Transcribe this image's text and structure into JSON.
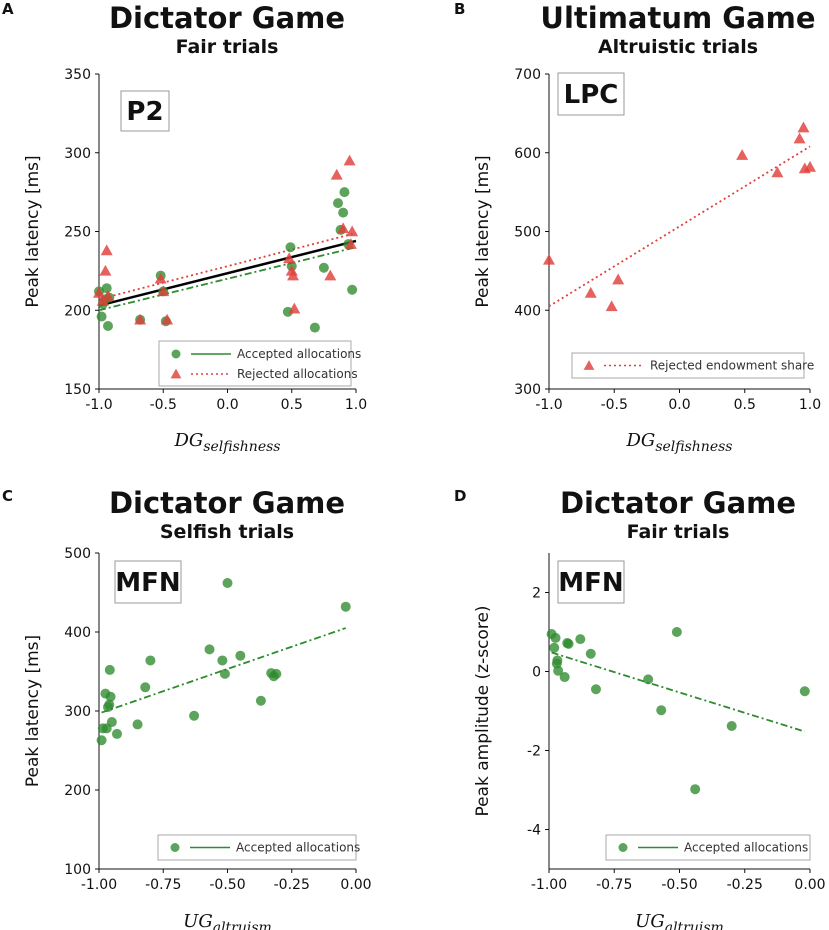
{
  "colors": {
    "accepted": "#2e8b2e",
    "rejected": "#e0403a",
    "regression": "#000000",
    "axis": "#111111"
  },
  "chart_data": [
    {
      "type": "scatter",
      "panel": "A",
      "title": "Dictator Game",
      "subtitle": "Fair trials",
      "tag": "P2",
      "ylabel": "Peak latency [ms]",
      "xlabel_main": "DG",
      "xlabel_sub": "selfishness",
      "xlim": [
        -1.0,
        1.0
      ],
      "ylim": [
        150,
        350
      ],
      "xticks": [
        -1.0,
        -0.5,
        0.0,
        0.5,
        1.0
      ],
      "xtick_labels": [
        "-1.0",
        "-0.5",
        "0.0",
        "0.5",
        "1.0"
      ],
      "yticks": [
        150,
        200,
        250,
        300,
        350
      ],
      "ytick_labels": [
        "150",
        "200",
        "250",
        "300",
        "350"
      ],
      "legend_position": "bottom-right",
      "series": [
        {
          "name": "Accepted allocations",
          "marker": "circle",
          "line": "dashdot",
          "color": "#2e8b2e",
          "points": [
            [
              -1.0,
              212
            ],
            [
              -0.98,
              196
            ],
            [
              -0.97,
              204
            ],
            [
              -0.95,
              207
            ],
            [
              -0.94,
              214
            ],
            [
              -0.93,
              190
            ],
            [
              -0.92,
              208
            ],
            [
              -0.68,
              194
            ],
            [
              -0.52,
              222
            ],
            [
              -0.5,
              212
            ],
            [
              -0.48,
              193
            ],
            [
              0.47,
              199
            ],
            [
              0.49,
              240
            ],
            [
              0.5,
              228
            ],
            [
              0.68,
              189
            ],
            [
              0.75,
              227
            ],
            [
              0.86,
              268
            ],
            [
              0.88,
              251
            ],
            [
              0.9,
              262
            ],
            [
              0.91,
              275
            ],
            [
              0.94,
              242
            ],
            [
              0.97,
              213
            ]
          ],
          "fit": [
            [
              -1.0,
              200
            ],
            [
              1.0,
              240
            ]
          ]
        },
        {
          "name": "Rejected allocations",
          "marker": "triangle",
          "line": "dotted",
          "color": "#e0403a",
          "points": [
            [
              -1.0,
              211
            ],
            [
              -0.97,
              206
            ],
            [
              -0.95,
              225
            ],
            [
              -0.94,
              238
            ],
            [
              -0.93,
              209
            ],
            [
              -0.68,
              194
            ],
            [
              -0.52,
              220
            ],
            [
              -0.5,
              212
            ],
            [
              -0.47,
              194
            ],
            [
              0.48,
              233
            ],
            [
              0.5,
              225
            ],
            [
              0.51,
              222
            ],
            [
              0.52,
              201
            ],
            [
              0.8,
              222
            ],
            [
              0.85,
              286
            ],
            [
              0.9,
              252
            ],
            [
              0.95,
              295
            ],
            [
              0.96,
              242
            ],
            [
              0.97,
              250
            ]
          ],
          "fit": [
            [
              -1.0,
              207
            ],
            [
              1.0,
              249
            ]
          ]
        },
        {
          "name": "",
          "marker": "none",
          "line": "solid",
          "color": "#000000",
          "points": [],
          "fit": [
            [
              -1.0,
              203
            ],
            [
              1.0,
              244
            ]
          ]
        }
      ],
      "legend": [
        {
          "marker": "circle",
          "line": "solid",
          "color": "#2e8b2e",
          "label": "Accepted allocations"
        },
        {
          "marker": "triangle",
          "line": "dotted",
          "color": "#e0403a",
          "label": "Rejected allocations"
        }
      ]
    },
    {
      "type": "scatter",
      "panel": "B",
      "title": "Ultimatum Game",
      "subtitle": "Altruistic trials",
      "tag": "LPC",
      "ylabel": "Peak latency [ms]",
      "xlabel_main": "DG",
      "xlabel_sub": "selfishness",
      "xlim": [
        -1.0,
        1.0
      ],
      "ylim": [
        300,
        700
      ],
      "xticks": [
        -1.0,
        -0.5,
        0.0,
        0.5,
        1.0
      ],
      "xtick_labels": [
        "-1.0",
        "-0.5",
        "0.0",
        "0.5",
        "1.0"
      ],
      "yticks": [
        300,
        400,
        500,
        600,
        700
      ],
      "ytick_labels": [
        "300",
        "400",
        "500",
        "600",
        "700"
      ],
      "legend_position": "bottom-right",
      "series": [
        {
          "name": "Rejected endowment share",
          "marker": "triangle",
          "line": "dotted",
          "color": "#e0403a",
          "points": [
            [
              -1.0,
              464
            ],
            [
              -0.68,
              422
            ],
            [
              -0.52,
              405
            ],
            [
              -0.47,
              439
            ],
            [
              0.48,
              597
            ],
            [
              0.75,
              575
            ],
            [
              0.92,
              618
            ],
            [
              0.95,
              632
            ],
            [
              0.96,
              580
            ],
            [
              1.0,
              582
            ]
          ],
          "fit": [
            [
              -1.0,
              405
            ],
            [
              1.0,
              608
            ]
          ]
        }
      ],
      "legend": [
        {
          "marker": "triangle",
          "line": "dotted",
          "color": "#e0403a",
          "label": "Rejected endowment share"
        }
      ]
    },
    {
      "type": "scatter",
      "panel": "C",
      "title": "Dictator Game",
      "subtitle": "Selfish trials",
      "tag": "MFN",
      "ylabel": "Peak latency [ms]",
      "xlabel_main": "UG",
      "xlabel_sub": "altruism",
      "xlim": [
        -1.0,
        0.0
      ],
      "ylim": [
        100,
        500
      ],
      "xticks": [
        -1.0,
        -0.75,
        -0.5,
        -0.25,
        0.0
      ],
      "xtick_labels": [
        "-1.00",
        "-0.75",
        "-0.50",
        "-0.25",
        "0.00"
      ],
      "yticks": [
        100,
        200,
        300,
        400,
        500
      ],
      "ytick_labels": [
        "100",
        "200",
        "300",
        "400",
        "500"
      ],
      "legend_position": "bottom-right",
      "series": [
        {
          "name": "Accepted allocations",
          "marker": "circle",
          "line": "dashdot",
          "color": "#2e8b2e",
          "points": [
            [
              -0.99,
              263
            ],
            [
              -0.985,
              278
            ],
            [
              -0.975,
              322
            ],
            [
              -0.97,
              278
            ],
            [
              -0.965,
              305
            ],
            [
              -0.96,
              308
            ],
            [
              -0.958,
              352
            ],
            [
              -0.955,
              318
            ],
            [
              -0.95,
              286
            ],
            [
              -0.93,
              271
            ],
            [
              -0.85,
              283
            ],
            [
              -0.82,
              330
            ],
            [
              -0.8,
              364
            ],
            [
              -0.63,
              294
            ],
            [
              -0.57,
              378
            ],
            [
              -0.52,
              364
            ],
            [
              -0.51,
              347
            ],
            [
              -0.5,
              462
            ],
            [
              -0.45,
              370
            ],
            [
              -0.37,
              313
            ],
            [
              -0.33,
              348
            ],
            [
              -0.32,
              344
            ],
            [
              -0.31,
              347
            ],
            [
              -0.04,
              432
            ]
          ],
          "fit": [
            [
              -0.99,
              298
            ],
            [
              -0.04,
              405
            ]
          ]
        }
      ],
      "legend": [
        {
          "marker": "circle",
          "line": "solid",
          "color": "#2e8b2e",
          "label": "Accepted allocations"
        }
      ]
    },
    {
      "type": "scatter",
      "panel": "D",
      "title": "Dictator Game",
      "subtitle": "Fair trials",
      "tag": "MFN",
      "ylabel": "Peak amplitude (z-score)",
      "xlabel_main": "UG",
      "xlabel_sub": "altruism",
      "xlim": [
        -1.0,
        0.0
      ],
      "ylim": [
        -5,
        3
      ],
      "xticks": [
        -1.0,
        -0.75,
        -0.5,
        -0.25,
        0.0
      ],
      "xtick_labels": [
        "-1.00",
        "-0.75",
        "-0.50",
        "-0.25",
        "0.00"
      ],
      "yticks": [
        -4,
        -2,
        0,
        2
      ],
      "ytick_labels": [
        "-4",
        "-2",
        "0",
        "2"
      ],
      "legend_position": "bottom-right",
      "series": [
        {
          "name": "Accepted allocations",
          "marker": "circle",
          "line": "dashdot",
          "color": "#2e8b2e",
          "points": [
            [
              -0.99,
              0.95
            ],
            [
              -0.98,
              0.6
            ],
            [
              -0.975,
              0.85
            ],
            [
              -0.97,
              0.2
            ],
            [
              -0.968,
              0.28
            ],
            [
              -0.965,
              0.02
            ],
            [
              -0.94,
              -0.14
            ],
            [
              -0.93,
              0.72
            ],
            [
              -0.925,
              0.7
            ],
            [
              -0.88,
              0.82
            ],
            [
              -0.84,
              0.45
            ],
            [
              -0.82,
              -0.45
            ],
            [
              -0.62,
              -0.2
            ],
            [
              -0.57,
              -0.98
            ],
            [
              -0.51,
              1.0
            ],
            [
              -0.44,
              -2.98
            ],
            [
              -0.3,
              -1.38
            ],
            [
              -0.02,
              -0.5
            ]
          ],
          "fit": [
            [
              -0.99,
              0.48
            ],
            [
              -0.02,
              -1.52
            ]
          ]
        }
      ],
      "legend": [
        {
          "marker": "circle",
          "line": "solid",
          "color": "#2e8b2e",
          "label": "Accepted allocations"
        }
      ]
    }
  ]
}
